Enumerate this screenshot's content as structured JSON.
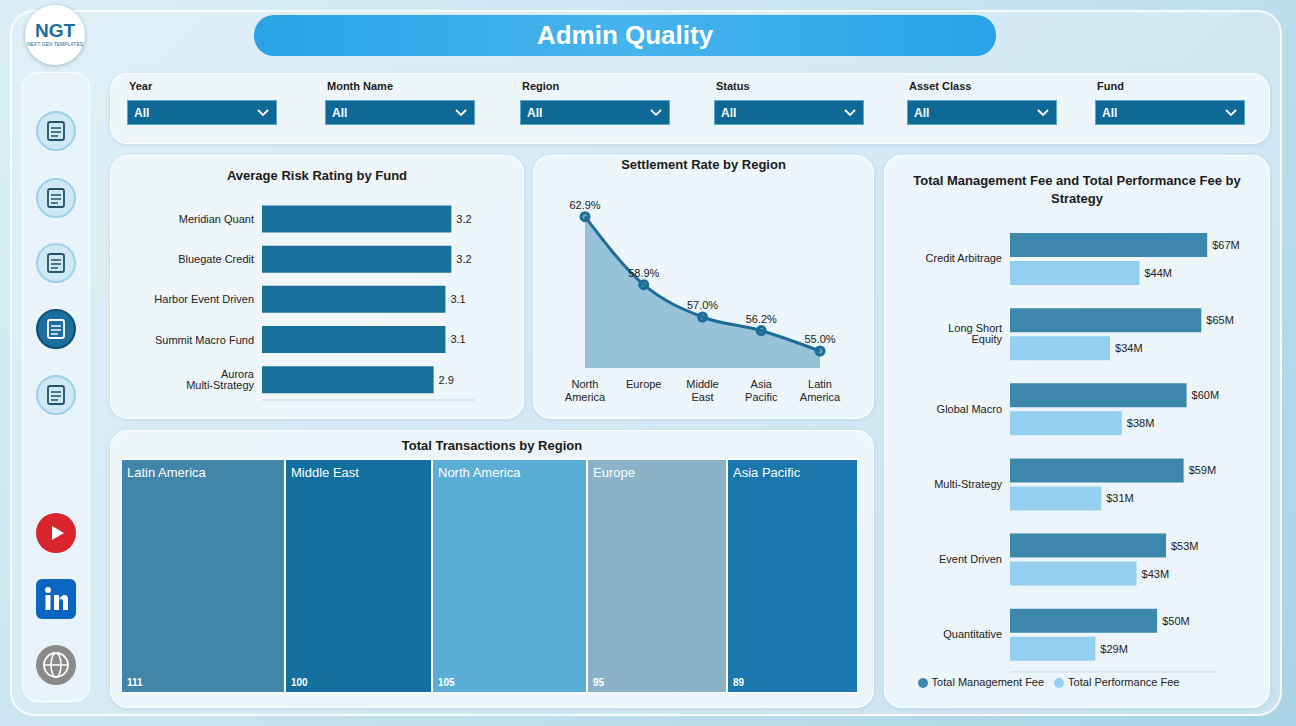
{
  "title": "Admin Quality",
  "logo": {
    "text": "NGT",
    "subtitle": "NEXT GEN TEMPLATES"
  },
  "filters": [
    {
      "label": "Year",
      "value": "All"
    },
    {
      "label": "Month Name",
      "value": "All"
    },
    {
      "label": "Region",
      "value": "All"
    },
    {
      "label": "Status",
      "value": "All"
    },
    {
      "label": "Asset Class",
      "value": "All"
    },
    {
      "label": "Fund",
      "value": "All"
    }
  ],
  "chart_data": [
    {
      "type": "bar",
      "title": "Average Risk Rating by Fund",
      "orientation": "horizontal",
      "categories": [
        "Meridian Quant",
        "Bluegate Credit",
        "Harbor Event Driven",
        "Summit Macro Fund",
        "Aurora Multi-Strategy"
      ],
      "values": [
        3.2,
        3.2,
        3.1,
        3.1,
        2.9
      ],
      "color": "#1a6f9b",
      "xlim": [
        0,
        3.6
      ],
      "data_labels": true,
      "tick_labels": "y",
      "grid": false
    },
    {
      "type": "area",
      "title": "Settlement Rate by Region",
      "categories": [
        "North America",
        "Europe",
        "Middle East",
        "Asia Pacific",
        "Latin America"
      ],
      "values": [
        62.9,
        58.9,
        57.0,
        56.2,
        55.0
      ],
      "value_labels": [
        "62.9%",
        "58.9%",
        "57.0%",
        "56.2%",
        "55.0%"
      ],
      "color": "#1d6c98",
      "ylim": [
        54,
        64
      ],
      "data_labels": true,
      "tick_labels": "x",
      "marker": "circle",
      "grid": false
    },
    {
      "type": "bar",
      "title": "Total Management Fee and Total Performance Fee by Strategy",
      "orientation": "horizontal",
      "categories": [
        "Credit Arbitrage",
        "Long Short Equity",
        "Global Macro",
        "Multi-Strategy",
        "Event Driven",
        "Quantitative"
      ],
      "series": [
        {
          "name": "Total Management Fee",
          "color": "#3d87ad",
          "values": [
            67,
            65,
            60,
            59,
            53,
            50
          ],
          "value_labels": [
            "$67M",
            "$65M",
            "$60M",
            "$59M",
            "$53M",
            "$50M"
          ]
        },
        {
          "name": "Total Performance Fee",
          "color": "#94cff0",
          "values": [
            44,
            34,
            38,
            31,
            43,
            29
          ],
          "value_labels": [
            "$44M",
            "$34M",
            "$38M",
            "$31M",
            "$43M",
            "$29M"
          ]
        }
      ],
      "xlim": [
        0,
        70
      ],
      "data_labels": true,
      "tick_labels": "y",
      "legend": "bottom",
      "grid": false
    },
    {
      "type": "treemap",
      "title": "Total Transactions by Region",
      "categories": [
        "Latin America",
        "Middle East",
        "North America",
        "Europe",
        "Asia Pacific"
      ],
      "values": [
        111,
        100,
        105,
        95,
        89
      ],
      "colors": [
        "#4185a8",
        "#1170a0",
        "#5aaed6",
        "#8ab3c8",
        "#1a78ad"
      ],
      "data_labels": true
    }
  ]
}
